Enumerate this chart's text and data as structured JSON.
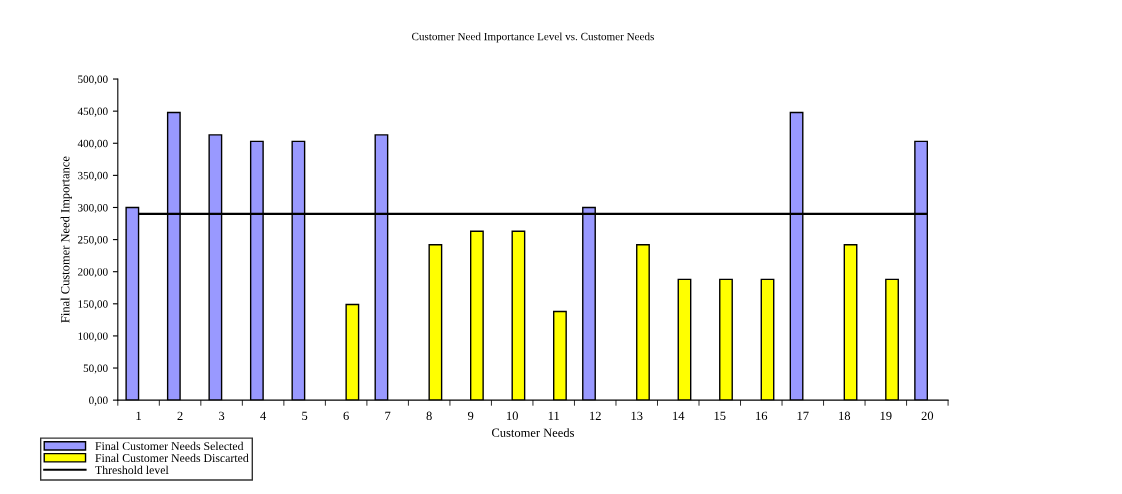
{
  "chart_data": {
    "type": "bar",
    "title": "Customer Need Importance Level vs. Customer Needs",
    "xlabel": "Customer Needs",
    "ylabel": "Final Customer Need Importance",
    "categories": [
      "1",
      "2",
      "3",
      "4",
      "5",
      "6",
      "7",
      "8",
      "9",
      "10",
      "11",
      "12",
      "13",
      "14",
      "15",
      "16",
      "17",
      "18",
      "19",
      "20"
    ],
    "series": [
      {
        "name": "Final Customer Needs Selected",
        "color": "#9999ff",
        "values": [
          300,
          448,
          413,
          403,
          403,
          null,
          413,
          null,
          null,
          null,
          null,
          300,
          null,
          null,
          null,
          null,
          448,
          null,
          null,
          403
        ]
      },
      {
        "name": "Final Customer Needs Discarted",
        "color": "#ffff00",
        "values": [
          null,
          null,
          null,
          null,
          null,
          149,
          null,
          242,
          263,
          263,
          138,
          null,
          242,
          188,
          188,
          188,
          null,
          242,
          188,
          null
        ]
      }
    ],
    "ref_lines": [
      {
        "axis": "y",
        "value": 290,
        "label": "Threshold level",
        "color": "#000000"
      }
    ],
    "ylim": [
      0,
      500
    ],
    "yticks": [
      {
        "value": 0,
        "label": "0,00"
      },
      {
        "value": 50,
        "label": "50,00"
      },
      {
        "value": 100,
        "label": "100,00"
      },
      {
        "value": 150,
        "label": "150,00"
      },
      {
        "value": 200,
        "label": "200,00"
      },
      {
        "value": 250,
        "label": "250,00"
      },
      {
        "value": 300,
        "label": "300,00"
      },
      {
        "value": 350,
        "label": "350,00"
      },
      {
        "value": 400,
        "label": "400,00"
      },
      {
        "value": 450,
        "label": "450,00"
      },
      {
        "value": 500,
        "label": "500,00"
      }
    ],
    "grid": false,
    "legend": "bottom left"
  }
}
